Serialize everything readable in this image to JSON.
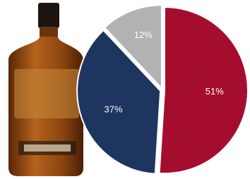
{
  "chart_data": {
    "type": "pie",
    "values": [
      51,
      37,
      12
    ],
    "value_labels": [
      "51%",
      "37%",
      "12%"
    ],
    "colors": [
      "#a50d2e",
      "#1e3560",
      "#b2b2b2"
    ]
  }
}
